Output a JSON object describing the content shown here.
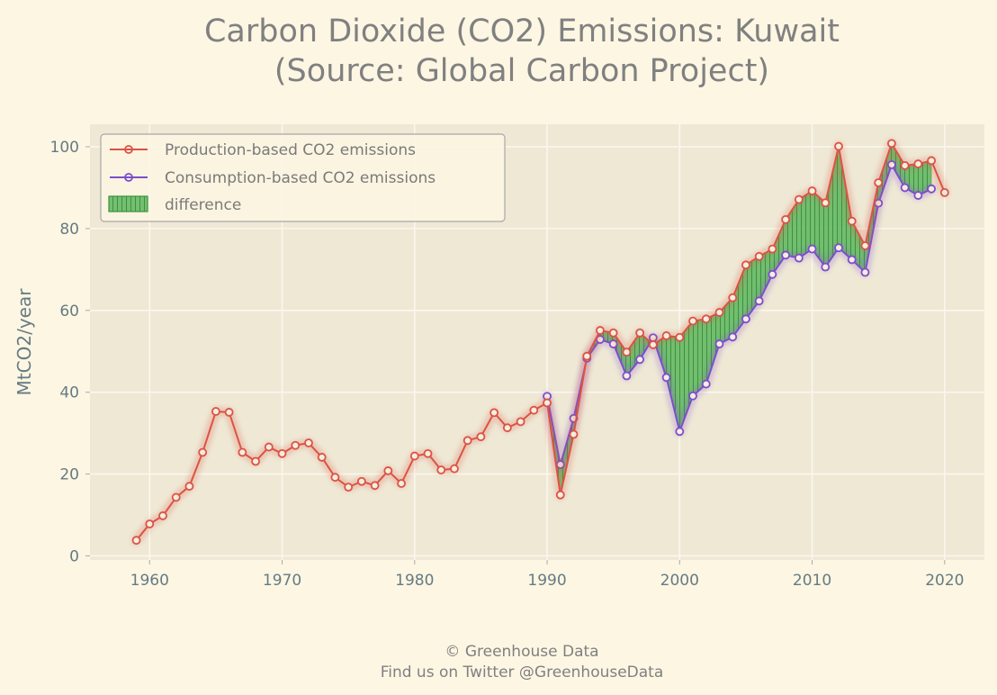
{
  "chart_data": {
    "type": "line",
    "title_line1": "Carbon Dioxide (CO2) Emissions: Kuwait",
    "title_line2": "(Source: Global Carbon Project)",
    "ylabel": "MtCO2/year",
    "xlabel": "",
    "xlim": [
      1955.5,
      2023
    ],
    "ylim": [
      -1,
      105.5
    ],
    "xticks": [
      1960,
      1970,
      1980,
      1990,
      2000,
      2010,
      2020
    ],
    "yticks": [
      0,
      20,
      40,
      60,
      80,
      100
    ],
    "grid": true,
    "legend_position": "top-left",
    "series": [
      {
        "name": "Production-based CO2 emissions",
        "color": "#dc5344",
        "x": [
          1959,
          1960,
          1961,
          1962,
          1963,
          1964,
          1965,
          1966,
          1967,
          1968,
          1969,
          1970,
          1971,
          1972,
          1973,
          1974,
          1975,
          1976,
          1977,
          1978,
          1979,
          1980,
          1981,
          1982,
          1983,
          1984,
          1985,
          1986,
          1987,
          1988,
          1989,
          1990,
          1991,
          1992,
          1993,
          1994,
          1995,
          1996,
          1997,
          1998,
          1999,
          2000,
          2001,
          2002,
          2003,
          2004,
          2005,
          2006,
          2007,
          2008,
          2009,
          2010,
          2011,
          2012,
          2013,
          2014,
          2015,
          2016,
          2017,
          2018,
          2019,
          2020
        ],
        "values": [
          3.8,
          7.8,
          9.8,
          14.3,
          17.0,
          25.3,
          35.3,
          35.1,
          25.3,
          23.1,
          26.6,
          25.0,
          27.0,
          27.6,
          24.1,
          19.2,
          16.8,
          18.2,
          17.2,
          20.8,
          17.7,
          24.4,
          25.0,
          21.0,
          21.3,
          28.2,
          29.1,
          35.0,
          31.3,
          32.8,
          35.6,
          37.4,
          14.9,
          29.7,
          48.8,
          55.1,
          54.5,
          49.8,
          54.5,
          51.6,
          53.8,
          53.4,
          57.4,
          57.9,
          59.5,
          63.1,
          71.1,
          73.2,
          75.0,
          82.2,
          87.1,
          89.2,
          86.3,
          100.1,
          81.8,
          75.8,
          91.2,
          100.8,
          95.4,
          95.8,
          96.6,
          88.8
        ]
      },
      {
        "name": "Consumption-based CO2 emissions",
        "color": "#7e4dcc",
        "x": [
          1990,
          1991,
          1992,
          1993,
          1994,
          1995,
          1996,
          1997,
          1998,
          1999,
          2000,
          2001,
          2002,
          2003,
          2004,
          2005,
          2006,
          2007,
          2008,
          2009,
          2010,
          2011,
          2012,
          2013,
          2014,
          2015,
          2016,
          2017,
          2018,
          2019
        ],
        "values": [
          39.0,
          22.3,
          33.6,
          48.3,
          52.9,
          51.8,
          44.0,
          48.0,
          53.3,
          43.6,
          30.4,
          39.1,
          42.0,
          51.8,
          53.5,
          57.9,
          62.3,
          68.8,
          73.5,
          72.8,
          75.0,
          70.6,
          75.3,
          72.4,
          69.3,
          86.2,
          95.6,
          90.0,
          88.1,
          89.7
        ]
      }
    ],
    "difference": {
      "name": "difference",
      "color": "#4caf50"
    }
  },
  "footer": {
    "line1": "© Greenhouse Data",
    "line2": "Find us on Twitter @GreenhouseData"
  },
  "colors": {
    "background": "#fdf6e3",
    "plot_background": "#eee8d5",
    "grid": "#fbf7ee",
    "text": "#657b83"
  }
}
